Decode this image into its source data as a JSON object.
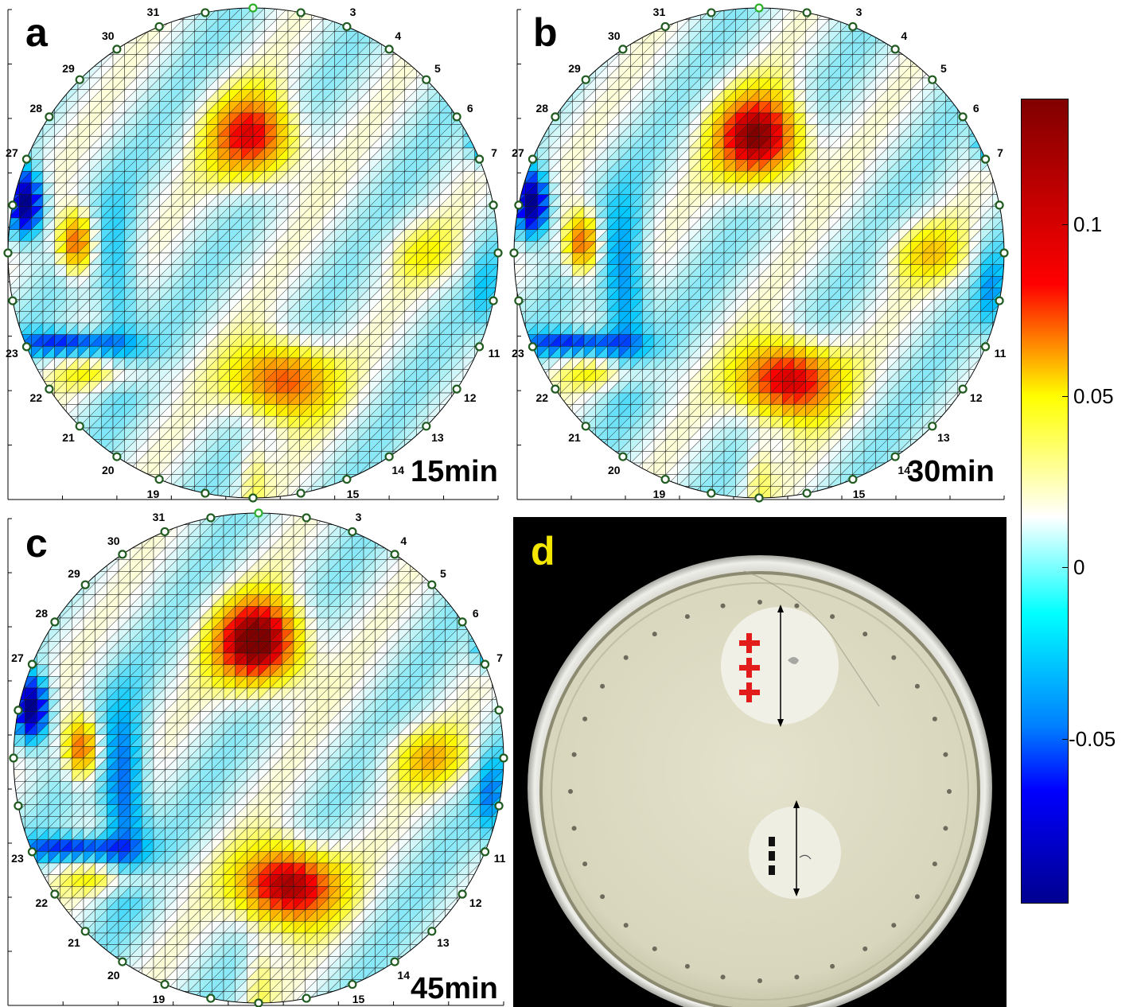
{
  "panels": [
    {
      "letter": "a",
      "time": "15min",
      "intensity": 0.55
    },
    {
      "letter": "b",
      "time": "30min",
      "intensity": 0.85
    },
    {
      "letter": "c",
      "time": "45min",
      "intensity": 1.0
    },
    {
      "letter": "d",
      "time": ""
    }
  ],
  "electrode_labels": [
    "3",
    "4",
    "5",
    "6",
    "7",
    "11",
    "12",
    "13",
    "14",
    "15",
    "19",
    "20",
    "21",
    "22",
    "23",
    "27",
    "28",
    "29",
    "30",
    "31"
  ],
  "colorbar": {
    "ticks": [
      "0.1",
      "0.05",
      "0",
      "-0.05"
    ],
    "tick_values": [
      0.1,
      0.05,
      0,
      -0.05
    ],
    "range": [
      -0.095,
      0.135
    ],
    "colormap": [
      "#00008f",
      "#0000ff",
      "#00ffff",
      "#ffffff",
      "#ffff00",
      "#ff0000",
      "#800000"
    ]
  },
  "photo": {
    "positive_mark": "+",
    "negative_mark": "-"
  }
}
